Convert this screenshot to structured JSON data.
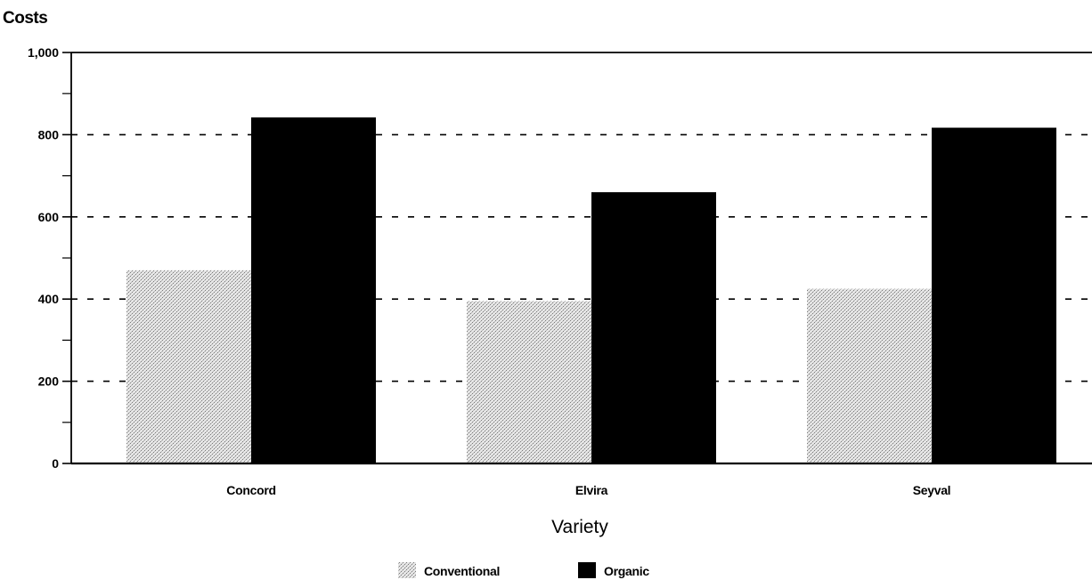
{
  "chart_data": {
    "type": "bar",
    "title": "",
    "ylabel": "Costs",
    "xlabel": "Variety",
    "categories": [
      "Concord",
      "Elvira",
      "Seyval"
    ],
    "series": [
      {
        "name": "Conventional",
        "values": [
          470,
          395,
          425
        ],
        "pattern": "light-stipple"
      },
      {
        "name": "Organic",
        "values": [
          842,
          660,
          817
        ],
        "color": "#000000"
      }
    ],
    "ylim": [
      0,
      1000
    ],
    "yticks": [
      0,
      200,
      400,
      600,
      800,
      1000
    ],
    "ytick_labels": [
      "0",
      "200",
      "400",
      "600",
      "800",
      "1,000"
    ],
    "grid": "dashed horizontal at major ticks",
    "legend_position": "bottom-center"
  }
}
